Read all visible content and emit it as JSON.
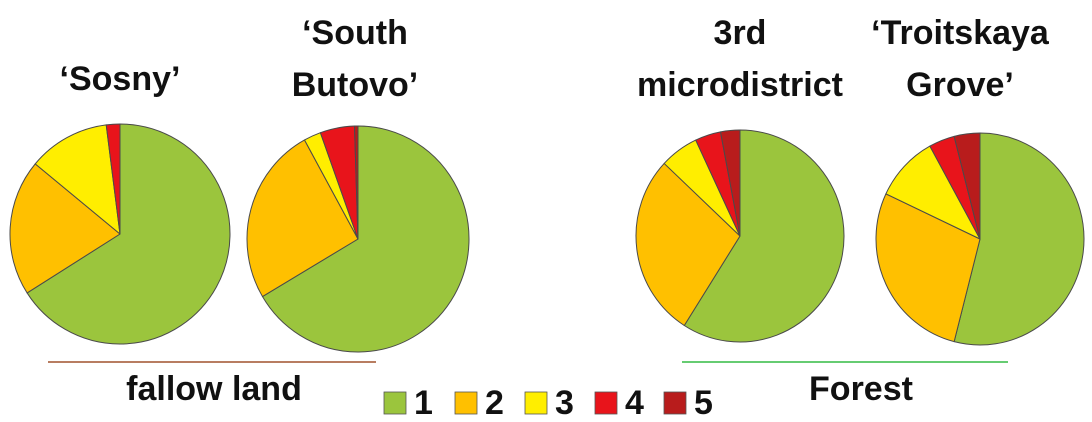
{
  "chart_data": [
    {
      "type": "pie",
      "title_lines": [
        "‘Sosny’"
      ],
      "categories": [
        "1",
        "2",
        "3",
        "4",
        "5"
      ],
      "values": [
        66,
        20,
        12,
        2,
        0
      ],
      "group": "fallow land"
    },
    {
      "type": "pie",
      "title_lines": [
        "‘South",
        "Butovo’"
      ],
      "categories": [
        "1",
        "2",
        "3",
        "4",
        "5"
      ],
      "values": [
        66.5,
        25.5,
        2.5,
        5,
        0.5
      ],
      "group": "fallow land"
    },
    {
      "type": "pie",
      "title_lines": [
        "3rd",
        "microdistrict"
      ],
      "categories": [
        "1",
        "2",
        "3",
        "4",
        "5"
      ],
      "values": [
        59,
        28,
        6,
        4,
        3
      ],
      "group": "Forest"
    },
    {
      "type": "pie",
      "title_lines": [
        "‘Troitskaya",
        "Grove’"
      ],
      "categories": [
        "1",
        "2",
        "3",
        "4",
        "5"
      ],
      "values": [
        54,
        28,
        10,
        4,
        4
      ],
      "group": "Forest"
    }
  ],
  "legend": {
    "placement": "bottom-center",
    "items": [
      {
        "label": "1",
        "color": "#9bc53d"
      },
      {
        "label": "2",
        "color": "#ffc000"
      },
      {
        "label": "3",
        "color": "#ffee00"
      },
      {
        "label": "4",
        "color": "#e8141b"
      },
      {
        "label": "5",
        "color": "#b81c1c"
      }
    ]
  },
  "groups": [
    {
      "label": "fallow land",
      "line_color": "#a0522d"
    },
    {
      "label": "Forest",
      "line_color": "#33bb44"
    }
  ]
}
